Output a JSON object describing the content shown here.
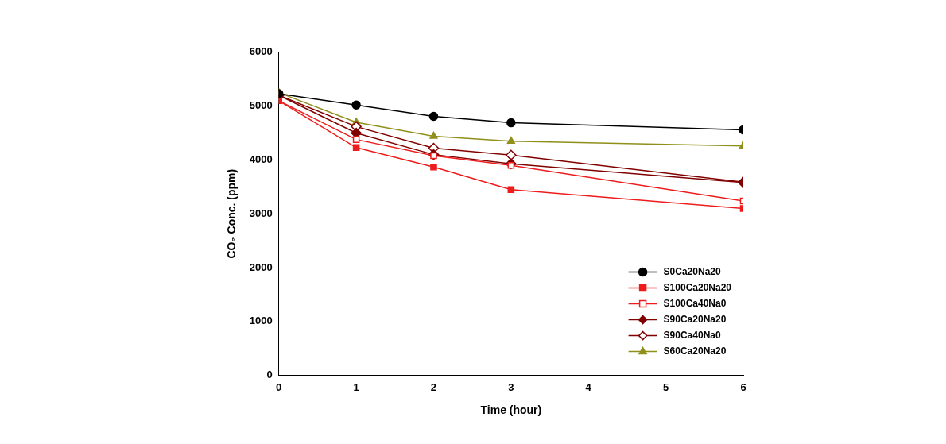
{
  "chart_data": {
    "type": "line",
    "x_label": "Time (hour)",
    "y_label": "CO₂ Conc. (ppm)",
    "x": [
      0,
      1,
      2,
      3,
      6
    ],
    "series": [
      {
        "name": "S0Ca20Na20",
        "color": "#000000",
        "marker": "circle",
        "values": [
          5230,
          5020,
          4810,
          4690,
          4560
        ]
      },
      {
        "name": "S100Ca20Na20",
        "color": "#ee1c1c",
        "marker": "square",
        "values": [
          5100,
          4230,
          3870,
          3450,
          3100
        ]
      },
      {
        "name": "S100Ca40Na0",
        "color": "#ee1c1c",
        "marker": "open square",
        "values": [
          5100,
          4380,
          4080,
          3900,
          3240
        ]
      },
      {
        "name": "S90Ca20Na20",
        "color": "#800000",
        "marker": "diamond",
        "values": [
          5200,
          4500,
          4100,
          3930,
          3580
        ]
      },
      {
        "name": "S90Ca40Na0",
        "color": "#800000",
        "marker": "open diamond",
        "values": [
          5200,
          4620,
          4220,
          4090,
          3590
        ]
      },
      {
        "name": "S60Ca20Na20",
        "color": "#8f8f1a",
        "marker": "triangle",
        "values": [
          5250,
          4700,
          4440,
          4350,
          4260
        ]
      }
    ],
    "xlim": [
      0,
      6
    ],
    "xticks": [
      0,
      1,
      2,
      3,
      4,
      5,
      6
    ],
    "ylim": [
      0,
      6000
    ],
    "yticks": [
      0,
      1000,
      2000,
      3000,
      4000,
      5000,
      6000
    ],
    "grid": false,
    "legend": "lower right"
  }
}
